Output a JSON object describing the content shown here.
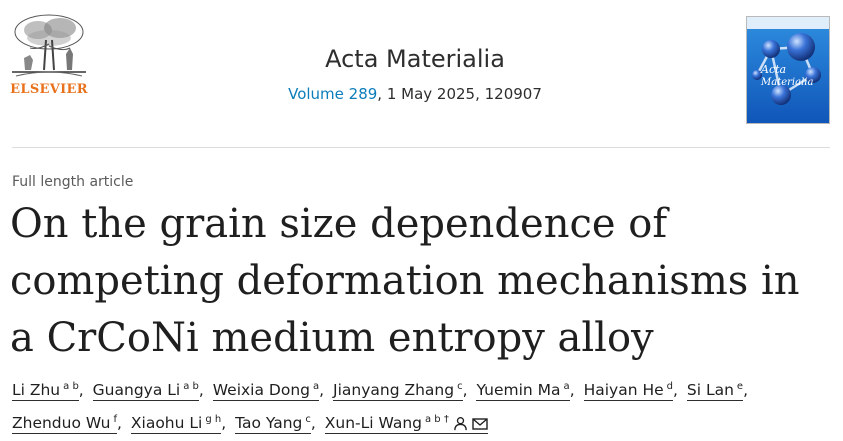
{
  "publisher": {
    "name": "ELSEVIER"
  },
  "journal": {
    "title": "Acta Materialia",
    "volume_link": "Volume 289",
    "issue_info": ", 1 May 2025, 120907"
  },
  "cover": {
    "label_line1": "Acta",
    "label_line2": "Materialia"
  },
  "article": {
    "type": "Full length article",
    "title": "On the grain size dependence of competing deformation mechanisms in a CrCoNi medium entropy alloy"
  },
  "authors": [
    {
      "name": "Li Zhu",
      "affil": "a b"
    },
    {
      "name": "Guangya Li",
      "affil": "a b"
    },
    {
      "name": "Weixia Dong",
      "affil": "a"
    },
    {
      "name": "Jianyang Zhang",
      "affil": "c"
    },
    {
      "name": "Yuemin Ma",
      "affil": "a"
    },
    {
      "name": "Haiyan He",
      "affil": "d"
    },
    {
      "name": "Si Lan",
      "affil": "e"
    },
    {
      "name": "Zhenduo Wu",
      "affil": "f"
    },
    {
      "name": "Xiaohu Li",
      "affil": "g h"
    },
    {
      "name": "Tao Yang",
      "affil": "c"
    },
    {
      "name": "Xun-Li Wang",
      "affil": "a b †"
    }
  ],
  "icons": {
    "person": "person-icon",
    "email": "envelope-icon"
  },
  "colors": {
    "publisher": "#e9711c",
    "link": "#0c7dbb",
    "cover_bg": "#1a6fc4"
  }
}
